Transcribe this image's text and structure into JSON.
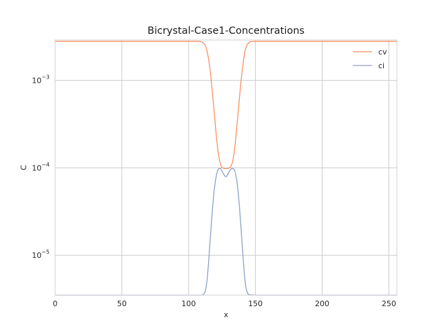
{
  "chart_data": {
    "type": "line",
    "title": "Bicrystal-Case1-Concentrations",
    "xlabel": "x",
    "ylabel": "C",
    "xlim": [
      0,
      256
    ],
    "ylim": [
      3.5e-06,
      0.0029
    ],
    "yscale": "log",
    "xticks": [
      0,
      50,
      100,
      150,
      200,
      250
    ],
    "xtick_labels": [
      "0",
      "50",
      "100",
      "150",
      "200",
      "250"
    ],
    "yticks": [
      1e-05,
      0.0001,
      0.001
    ],
    "ytick_labels": [
      {
        "base": "10",
        "exp": "−5"
      },
      {
        "base": "10",
        "exp": "−4"
      },
      {
        "base": "10",
        "exp": "−3"
      }
    ],
    "grid": true,
    "legend": "top-right",
    "series": [
      {
        "name": "cv",
        "color": "#fc8d62",
        "x": [
          0,
          100,
          108,
          110,
          112,
          113,
          114,
          115,
          116,
          117,
          118,
          119,
          120,
          121,
          122,
          123,
          124,
          125,
          126,
          127,
          128,
          129,
          130,
          131,
          132,
          133,
          134,
          135,
          136,
          137,
          138,
          139,
          140,
          141,
          142,
          143,
          144,
          146,
          150,
          256
        ],
        "y": [
          0.0028,
          0.0028,
          0.0028,
          0.00275,
          0.0026,
          0.0024,
          0.0021,
          0.00175,
          0.00135,
          0.00098,
          0.00068,
          0.00046,
          0.00031,
          0.00021,
          0.000155,
          0.000125,
          0.000108,
          0.000101,
          9.9e-05,
          9.8e-05,
          9.8e-05,
          9.8e-05,
          9.9e-05,
          0.000101,
          0.000106,
          0.000118,
          0.000145,
          0.000195,
          0.00028,
          0.00042,
          0.00062,
          0.0009,
          0.00125,
          0.00165,
          0.0021,
          0.0024,
          0.0026,
          0.00277,
          0.0028,
          0.0028
        ]
      },
      {
        "name": "ci",
        "color": "#8da0cb",
        "x": [
          0,
          100,
          110,
          111,
          112,
          113,
          114,
          115,
          116,
          117,
          118,
          119,
          120,
          121,
          122,
          123,
          124,
          125,
          126,
          127,
          128,
          129,
          130,
          131,
          132,
          133,
          134,
          135,
          136,
          137,
          138,
          139,
          140,
          141,
          142,
          143,
          144,
          145,
          150,
          256
        ],
        "y": [
          3.5e-06,
          3.5e-06,
          3.5e-06,
          3.55e-06,
          3.7e-06,
          4.2e-06,
          5.5e-06,
          8.5e-06,
          1.4e-05,
          2.3e-05,
          3.6e-05,
          5.3e-05,
          7e-05,
          8.5e-05,
          9.5e-05,
          9.9e-05,
          9.8e-05,
          9.2e-05,
          8.6e-05,
          8.1e-05,
          7.9e-05,
          8.2e-05,
          8.8e-05,
          9.4e-05,
          9.8e-05,
          9.9e-05,
          9.6e-05,
          8.8e-05,
          7.3e-05,
          5.5e-05,
          3.7e-05,
          2.3e-05,
          1.4e-05,
          8.5e-06,
          5.5e-06,
          4.2e-06,
          3.7e-06,
          3.55e-06,
          3.5e-06,
          3.5e-06
        ]
      }
    ]
  }
}
